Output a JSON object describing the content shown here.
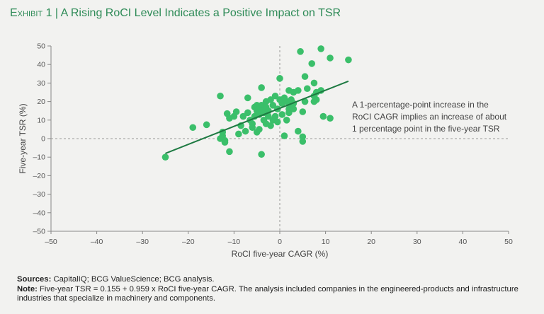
{
  "title": {
    "exhibit_label": "Exhibit 1",
    "separator": "|",
    "text": "A Rising RoCI Level Indicates a Positive Impact on TSR"
  },
  "chart_data": {
    "type": "scatter",
    "xlabel": "RoCI five-year CAGR (%)",
    "ylabel": "Five-year TSR (%)",
    "xlim": [
      -50,
      50
    ],
    "ylim": [
      -50,
      50
    ],
    "xticks": [
      -50,
      -40,
      -30,
      -20,
      -10,
      0,
      10,
      20,
      30,
      40,
      50
    ],
    "yticks": [
      -50,
      -40,
      -30,
      -20,
      -10,
      0,
      10,
      20,
      30,
      40,
      50
    ],
    "x_tick_labels": [
      "–50",
      "–40",
      "–30",
      "–20",
      "–10",
      "0",
      "10",
      "20",
      "30",
      "40",
      "50"
    ],
    "y_tick_labels": [
      "–50",
      "–40",
      "–30",
      "–20",
      "–10",
      "0",
      "10",
      "20",
      "30",
      "40",
      "50"
    ],
    "point_color": "#3bbf6a",
    "line_color": "#1e7a42",
    "trendline": {
      "x": [
        -25,
        15
      ],
      "y": [
        -8.0,
        31.0
      ]
    },
    "annotation": [
      "A 1-percentage-point increase in the",
      "RoCI CAGR implies an increase of about",
      "1 percentage point in the five-year TSR"
    ],
    "points": [
      {
        "x": -25,
        "y": -10
      },
      {
        "x": -19,
        "y": 6
      },
      {
        "x": -16,
        "y": 7.5
      },
      {
        "x": -13,
        "y": 23
      },
      {
        "x": -13,
        "y": 0
      },
      {
        "x": -12.5,
        "y": 1.5
      },
      {
        "x": -12.5,
        "y": 3.5
      },
      {
        "x": -12,
        "y": -1
      },
      {
        "x": -12,
        "y": -2
      },
      {
        "x": -11.5,
        "y": 13.5
      },
      {
        "x": -11,
        "y": 11
      },
      {
        "x": -11,
        "y": -7
      },
      {
        "x": -10,
        "y": 12
      },
      {
        "x": -9.5,
        "y": 14.5
      },
      {
        "x": -9,
        "y": 2.5
      },
      {
        "x": -8.5,
        "y": 7
      },
      {
        "x": -8,
        "y": 12
      },
      {
        "x": -7.5,
        "y": 4
      },
      {
        "x": -7,
        "y": 22
      },
      {
        "x": -7,
        "y": 14
      },
      {
        "x": -6.5,
        "y": 10
      },
      {
        "x": -6,
        "y": 6
      },
      {
        "x": -6,
        "y": 8
      },
      {
        "x": -5.5,
        "y": 17
      },
      {
        "x": -5.5,
        "y": 12
      },
      {
        "x": -5,
        "y": 15
      },
      {
        "x": -5,
        "y": 18
      },
      {
        "x": -5,
        "y": 3.5
      },
      {
        "x": -4.5,
        "y": 13
      },
      {
        "x": -4.5,
        "y": 16
      },
      {
        "x": -4.5,
        "y": 5
      },
      {
        "x": -4,
        "y": 27.5
      },
      {
        "x": -4,
        "y": 18
      },
      {
        "x": -4,
        "y": 15
      },
      {
        "x": -4,
        "y": -8.5
      },
      {
        "x": -3.5,
        "y": 10
      },
      {
        "x": -3.5,
        "y": 14
      },
      {
        "x": -3,
        "y": 20
      },
      {
        "x": -3,
        "y": 17
      },
      {
        "x": -3,
        "y": 8
      },
      {
        "x": -2.5,
        "y": 12
      },
      {
        "x": -2.5,
        "y": 15
      },
      {
        "x": -2,
        "y": 21
      },
      {
        "x": -2,
        "y": 7
      },
      {
        "x": -1.5,
        "y": 18
      },
      {
        "x": -1.5,
        "y": 10
      },
      {
        "x": -1,
        "y": 23
      },
      {
        "x": -1,
        "y": 12
      },
      {
        "x": -0.5,
        "y": 16
      },
      {
        "x": -0.5,
        "y": 9
      },
      {
        "x": 0,
        "y": 32.5
      },
      {
        "x": 0,
        "y": 21
      },
      {
        "x": 0.5,
        "y": 19
      },
      {
        "x": 0.5,
        "y": 13
      },
      {
        "x": 1,
        "y": 1.5
      },
      {
        "x": 1,
        "y": 22
      },
      {
        "x": 1.5,
        "y": 10
      },
      {
        "x": 1.5,
        "y": 20
      },
      {
        "x": 2,
        "y": 26
      },
      {
        "x": 2,
        "y": 16
      },
      {
        "x": 2,
        "y": 14
      },
      {
        "x": 2.5,
        "y": 21
      },
      {
        "x": 2.5,
        "y": 18
      },
      {
        "x": 3,
        "y": 25
      },
      {
        "x": 3,
        "y": 19
      },
      {
        "x": 3,
        "y": 16
      },
      {
        "x": 4,
        "y": 26
      },
      {
        "x": 4,
        "y": 4
      },
      {
        "x": 4.5,
        "y": 47
      },
      {
        "x": 5,
        "y": 1
      },
      {
        "x": 5,
        "y": -1.5
      },
      {
        "x": 5,
        "y": 14.5
      },
      {
        "x": 5.5,
        "y": 20
      },
      {
        "x": 5.5,
        "y": 33.5
      },
      {
        "x": 6,
        "y": 27
      },
      {
        "x": 7,
        "y": 40.5
      },
      {
        "x": 7.5,
        "y": 30
      },
      {
        "x": 7.5,
        "y": 23
      },
      {
        "x": 7.5,
        "y": 20
      },
      {
        "x": 8,
        "y": 25
      },
      {
        "x": 8,
        "y": 21
      },
      {
        "x": 9,
        "y": 26
      },
      {
        "x": 9,
        "y": 48.5
      },
      {
        "x": 9.5,
        "y": 12
      },
      {
        "x": 11,
        "y": 43.5
      },
      {
        "x": 11,
        "y": 11
      },
      {
        "x": 15,
        "y": 42.5
      }
    ]
  },
  "footer": {
    "sources_label": "Sources:",
    "sources_text": " CapitalIQ; BCG ValueScience; BCG analysis.",
    "note_label": "Note:",
    "note_text": " Five-year TSR = 0.155 + 0.959 x RoCI five-year CAGR. The analysis included companies in the engineered-products and infrastructure industries that specialize in machinery and components."
  }
}
